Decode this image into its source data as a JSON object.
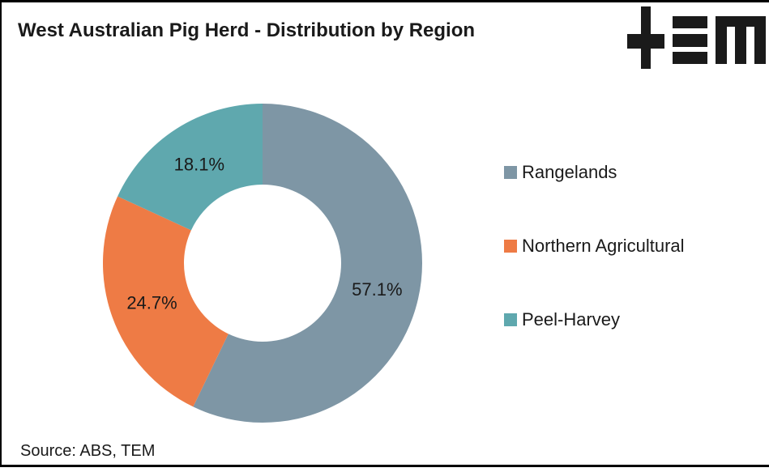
{
  "header": {
    "title": "West Australian Pig Herd - Distribution by Region"
  },
  "logo": {
    "name": "TEM",
    "color": "#1a1a1a"
  },
  "footer": {
    "source": "Source: ABS, TEM"
  },
  "colors": {
    "text": "#1a1a1a",
    "frame_border": "#000000",
    "background": "#ffffff"
  },
  "chart_data": {
    "type": "pie",
    "subtype": "donut",
    "title": "West Australian Pig Herd - Distribution by Region",
    "categories": [
      "Rangelands",
      "Northern Agricultural",
      "Peel-Harvey"
    ],
    "values": [
      57.1,
      24.7,
      18.1
    ],
    "data_labels": [
      "57.1%",
      "24.7%",
      "18.1%"
    ],
    "colors": [
      "#7E96A5",
      "#EE7B45",
      "#5FA8AE"
    ],
    "start_angle_deg": 0,
    "direction": "clockwise",
    "inner_radius_ratio": 0.49,
    "outer_radius_px": 197,
    "label_radius_px": 145,
    "legend_position": "right",
    "legend_entries": [
      "Rangelands",
      "Northern Agricultural",
      "Peel-Harvey"
    ],
    "source": "Source: ABS, TEM"
  }
}
